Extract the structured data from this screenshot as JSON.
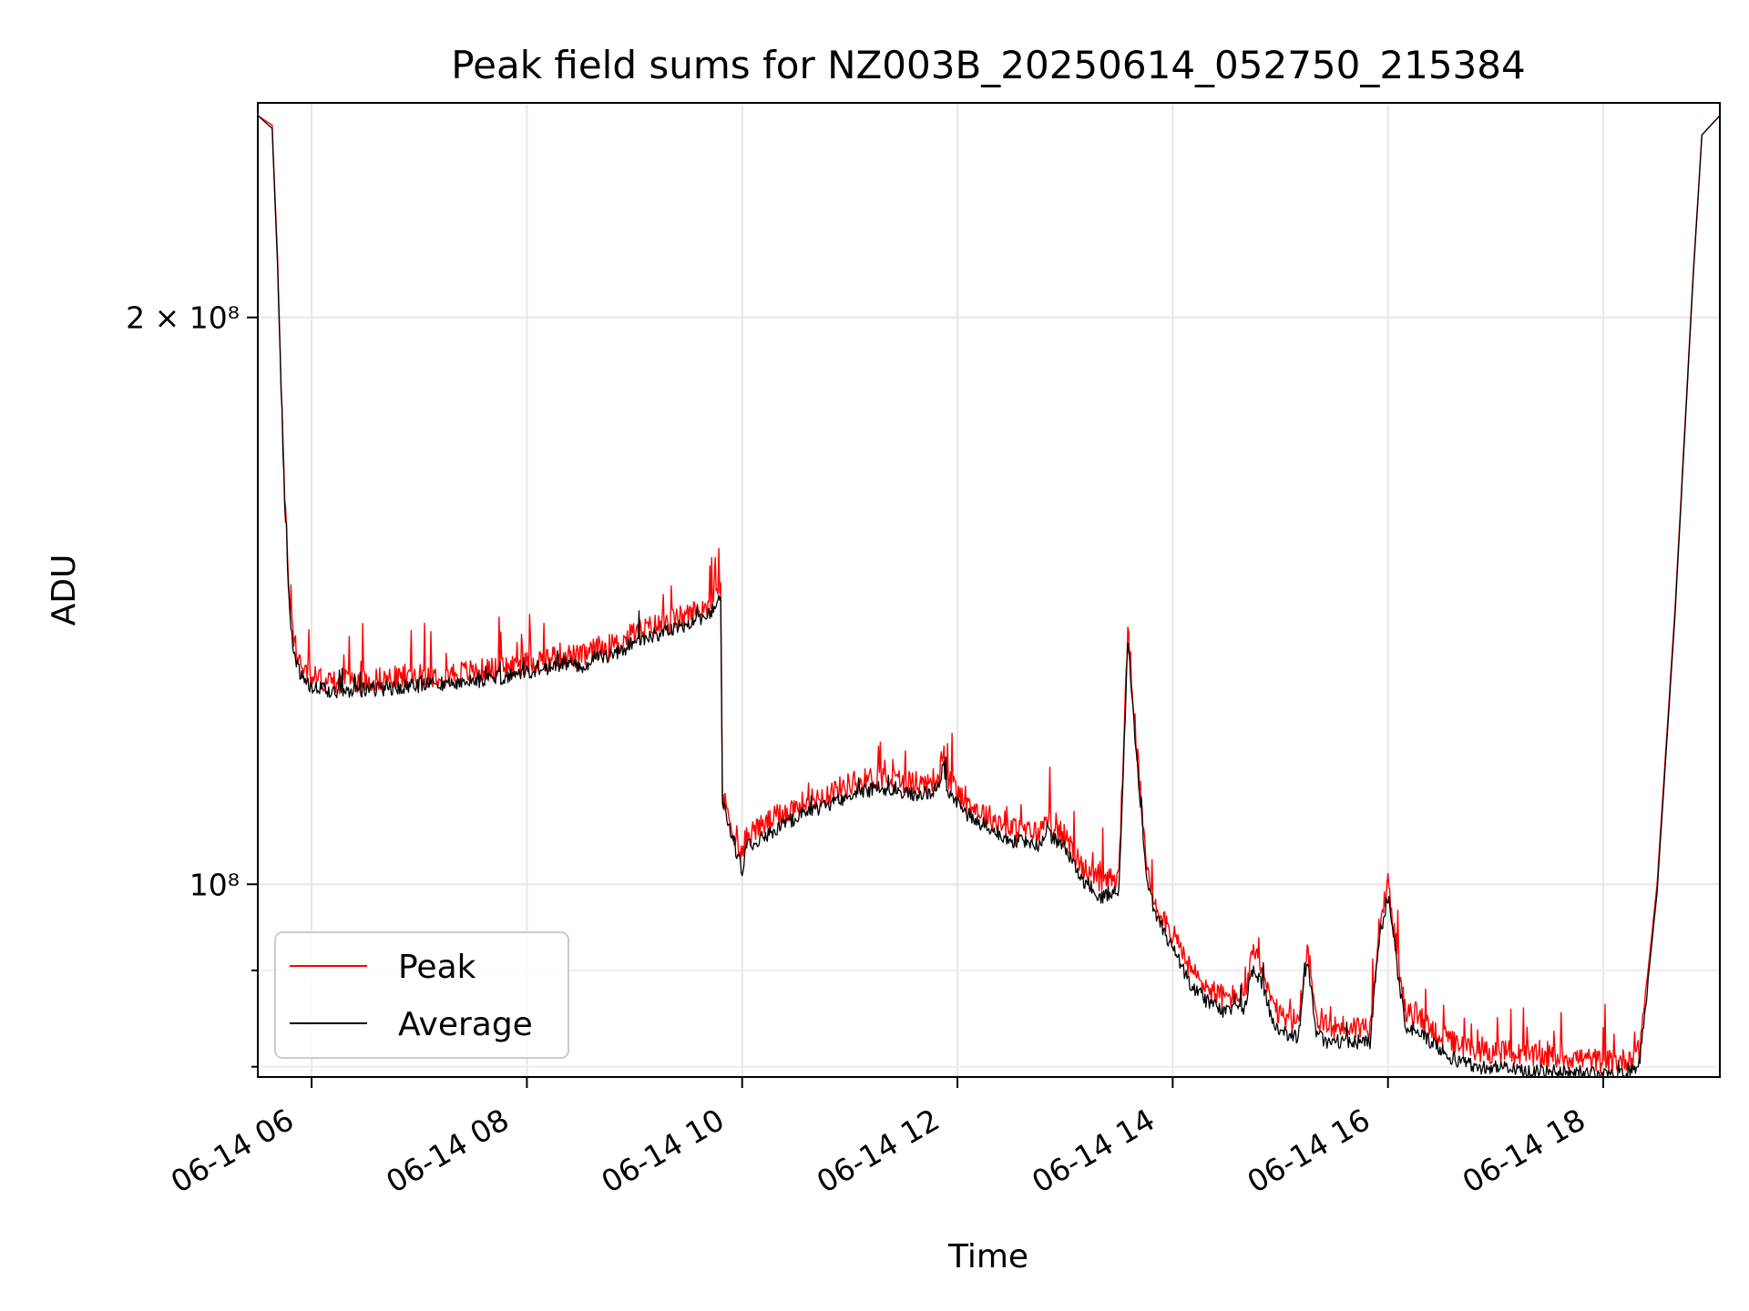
{
  "chart_data": {
    "type": "line",
    "title": "Peak field sums for NZ003B_20250614_052750_215384",
    "xlabel": "Time",
    "ylabel": "ADU",
    "yscale": "log",
    "ylim": [
      79000000,
      260000000
    ],
    "xlim": [
      "2025-06-14 05:30",
      "2025-06-14 19:05"
    ],
    "grid": true,
    "legend_position": "lower-left",
    "x_ticks": [
      {
        "label": "06-14 06",
        "time": "2025-06-14 06:00"
      },
      {
        "label": "06-14 08",
        "time": "2025-06-14 08:00"
      },
      {
        "label": "06-14 10",
        "time": "2025-06-14 10:00"
      },
      {
        "label": "06-14 12",
        "time": "2025-06-14 12:00"
      },
      {
        "label": "06-14 14",
        "time": "2025-06-14 14:00"
      },
      {
        "label": "06-14 16",
        "time": "2025-06-14 16:00"
      },
      {
        "label": "06-14 18",
        "time": "2025-06-14 18:00"
      }
    ],
    "y_ticks": [
      {
        "label": "2 × 10⁸",
        "value": 200000000
      },
      {
        "label": "10⁸",
        "value": 100000000
      }
    ],
    "y_minor_ticks": [
      90000000,
      80000000
    ],
    "series": [
      {
        "name": "Peak",
        "color": "#ff0000",
        "x": [
          "05:30",
          "05:38",
          "05:41",
          "05:45",
          "05:48",
          "05:50",
          "05:54",
          "05:57",
          "06:00",
          "06:05",
          "06:10",
          "06:20",
          "06:40",
          "07:00",
          "07:20",
          "07:40",
          "08:00",
          "08:20",
          "08:30",
          "08:40",
          "08:50",
          "09:00",
          "09:10",
          "09:20",
          "09:30",
          "09:40",
          "09:45",
          "09:48",
          "09:49",
          "09:51",
          "10:00",
          "10:02",
          "10:15",
          "10:30",
          "10:45",
          "11:00",
          "11:15",
          "11:30",
          "11:40",
          "11:50",
          "11:52",
          "11:54",
          "12:00",
          "12:05",
          "12:15",
          "12:30",
          "12:45",
          "12:50",
          "13:00",
          "13:10",
          "13:20",
          "13:30",
          "13:35",
          "13:40",
          "13:45",
          "13:50",
          "14:00",
          "14:10",
          "14:20",
          "14:30",
          "14:40",
          "14:45",
          "14:50",
          "14:55",
          "15:00",
          "15:10",
          "15:15",
          "15:20",
          "15:25",
          "15:30",
          "15:40",
          "15:50",
          "15:55",
          "16:00",
          "16:05",
          "16:10",
          "16:15",
          "16:20",
          "16:30",
          "16:40",
          "16:50",
          "17:00",
          "17:20",
          "17:40",
          "18:00",
          "18:10",
          "18:20",
          "18:25",
          "18:30",
          "18:40",
          "18:50",
          "18:55",
          "19:05"
        ],
        "y": [
          256000000,
          253000000,
          215000000,
          160000000,
          140000000,
          135000000,
          131000000,
          129500000,
          129000000,
          128500000,
          128000000,
          128200000,
          128500000,
          129000000,
          129500000,
          130000000,
          131000000,
          132500000,
          132000000,
          133500000,
          134000000,
          136000000,
          137000000,
          138000000,
          139000000,
          140500000,
          142000000,
          145000000,
          111000000,
          110000000,
          103000000,
          106000000,
          108000000,
          110000000,
          111500000,
          113000000,
          114000000,
          113500000,
          113000000,
          114000000,
          118000000,
          114000000,
          112000000,
          110500000,
          109000000,
          107000000,
          106500000,
          108000000,
          106000000,
          102000000,
          100000000,
          101000000,
          137000000,
          118000000,
          103000000,
          98000000,
          94000000,
          90000000,
          88000000,
          87000000,
          87500000,
          92000000,
          90000000,
          86500000,
          85000000,
          84500000,
          93000000,
          85000000,
          84000000,
          84000000,
          84000000,
          84000000,
          95000000,
          100000000,
          92000000,
          85000000,
          85500000,
          84500000,
          83000000,
          82000000,
          81500000,
          81500000,
          81000000,
          81000000,
          80500000,
          80500000,
          81500000,
          90000000,
          100000000,
          140000000,
          210000000,
          250000000,
          256000000
        ]
      },
      {
        "name": "Average",
        "color": "#000000",
        "x": [
          "05:30",
          "05:38",
          "05:41",
          "05:45",
          "05:48",
          "05:50",
          "05:54",
          "05:57",
          "06:00",
          "06:05",
          "06:10",
          "06:20",
          "06:40",
          "07:00",
          "07:20",
          "07:40",
          "08:00",
          "08:20",
          "08:30",
          "08:40",
          "08:50",
          "09:00",
          "09:10",
          "09:20",
          "09:30",
          "09:40",
          "09:45",
          "09:48",
          "09:49",
          "09:51",
          "10:00",
          "10:02",
          "10:15",
          "10:30",
          "10:45",
          "11:00",
          "11:15",
          "11:30",
          "11:40",
          "11:50",
          "11:52",
          "11:54",
          "12:00",
          "12:05",
          "12:15",
          "12:30",
          "12:45",
          "12:50",
          "13:00",
          "13:10",
          "13:20",
          "13:30",
          "13:35",
          "13:40",
          "13:45",
          "13:50",
          "14:00",
          "14:10",
          "14:20",
          "14:30",
          "14:40",
          "14:45",
          "14:50",
          "14:55",
          "15:00",
          "15:10",
          "15:15",
          "15:20",
          "15:25",
          "15:30",
          "15:40",
          "15:50",
          "15:55",
          "16:00",
          "16:05",
          "16:10",
          "16:15",
          "16:20",
          "16:30",
          "16:40",
          "16:50",
          "17:00",
          "17:20",
          "17:40",
          "18:00",
          "18:10",
          "18:20",
          "18:25",
          "18:30",
          "18:40",
          "18:50",
          "18:55",
          "19:05"
        ],
        "y": [
          256000000,
          252000000,
          213000000,
          158000000,
          138000000,
          133000000,
          129000000,
          127800000,
          127300000,
          127000000,
          126700000,
          126800000,
          127000000,
          127500000,
          128000000,
          128500000,
          129500000,
          131000000,
          130500000,
          132000000,
          132500000,
          134500000,
          135500000,
          136500000,
          137500000,
          139000000,
          140500000,
          143000000,
          110000000,
          109000000,
          101500000,
          104500000,
          106500000,
          108500000,
          110000000,
          111500000,
          112500000,
          112000000,
          111500000,
          112500000,
          116500000,
          112500000,
          110500000,
          109000000,
          107500000,
          105500000,
          105000000,
          106500000,
          104500000,
          100500000,
          98500000,
          99500000,
          135000000,
          116500000,
          101500000,
          96500000,
          92500000,
          88500000,
          86500000,
          85500000,
          86000000,
          90500000,
          88500000,
          85000000,
          83500000,
          83000000,
          91500000,
          83500000,
          82500000,
          82500000,
          82500000,
          82500000,
          93500000,
          98500000,
          90500000,
          83500000,
          84000000,
          83000000,
          81500000,
          80500000,
          80000000,
          80000000,
          79500000,
          79500000,
          79200000,
          79200000,
          80200000,
          89000000,
          99000000,
          139000000,
          209000000,
          250000000,
          256000000
        ]
      }
    ]
  }
}
